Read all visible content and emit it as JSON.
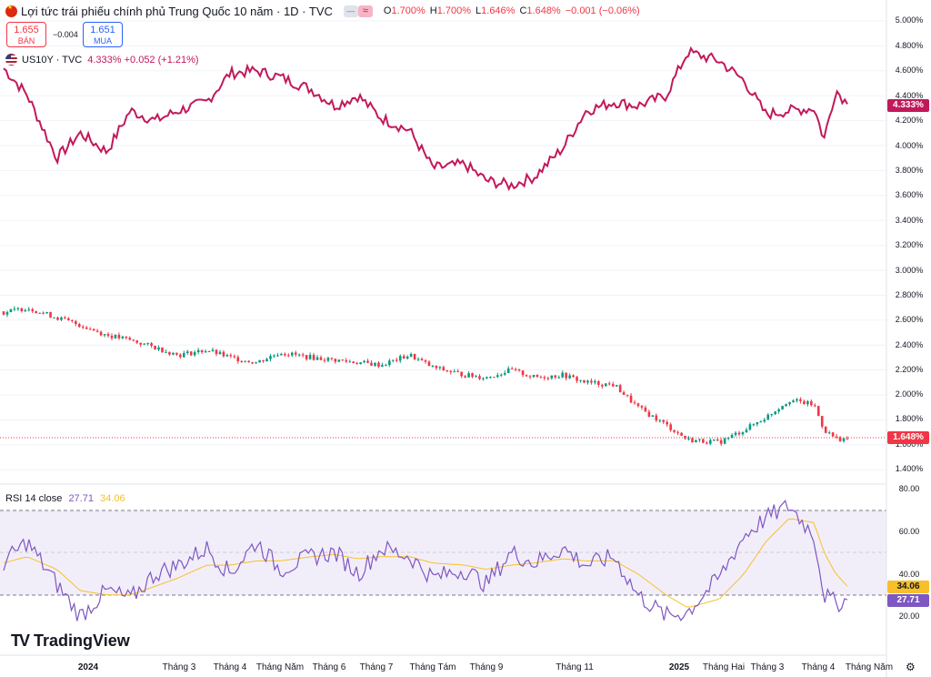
{
  "header": {
    "title": "Lợi tức trái phiếu chính phủ Trung Quốc 10 năm · 1D · TVC",
    "hide_icon": "minus-icon",
    "approx_icon": "≈",
    "ohlc": [
      {
        "label": "O",
        "value": "1.700%"
      },
      {
        "label": "H",
        "value": "1.700%"
      },
      {
        "label": "L",
        "value": "1.646%"
      },
      {
        "label": "C",
        "value": "1.648%"
      }
    ],
    "change": "−0.001 (−0.06%)"
  },
  "trade": {
    "sell_price": "1.655",
    "sell_label": "BÁN",
    "spread": "−0.004",
    "buy_price": "1.651",
    "buy_label": "MUA"
  },
  "compare": {
    "symbol": "US10Y · TVC",
    "value": "4.333% +0.052 (+1.21%)"
  },
  "rsi": {
    "label": "RSI 14 close",
    "rsi_value": "27.71",
    "ma_value": "34.06"
  },
  "price_axis": {
    "right_ticks": [
      "5.000%",
      "4.800%",
      "4.600%",
      "4.400%",
      "4.200%",
      "4.000%",
      "3.800%",
      "3.600%",
      "3.400%",
      "3.200%",
      "3.000%",
      "2.800%",
      "2.600%",
      "2.400%",
      "2.200%",
      "2.000%",
      "1.800%",
      "1.600%",
      "1.400%"
    ],
    "us_badge": "4.333%",
    "cn_badge": "1.648%"
  },
  "rsi_axis": {
    "ticks": [
      "80.00",
      "60.00",
      "40.00",
      "20.00"
    ],
    "ma_badge": "34.06",
    "rsi_badge": "27.71"
  },
  "time_axis": [
    "2024",
    "Tháng 3",
    "Tháng 4",
    "Tháng Năm",
    "Tháng 6",
    "Tháng 7",
    "Tháng Tám",
    "Tháng 9",
    "Tháng 11",
    "2025",
    "Tháng Hai",
    "Tháng 3",
    "Tháng 4",
    "Tháng Năm"
  ],
  "branding": {
    "logo_mark": "TV",
    "logo_text": "TradingView"
  },
  "colors": {
    "up": "#089981",
    "down": "#f23645",
    "us_line": "#c2185b",
    "rsi_line": "#7e57c2",
    "rsi_ma": "#f7c02a"
  },
  "chart_data": [
    {
      "type": "line",
      "name": "US10Y",
      "unit": "%",
      "x": [
        "2023-12-01",
        "2023-12-15",
        "2024-01-02",
        "2024-01-16",
        "2024-02-01",
        "2024-02-15",
        "2024-03-01",
        "2024-03-15",
        "2024-04-01",
        "2024-04-15",
        "2024-05-01",
        "2024-05-15",
        "2024-06-03",
        "2024-06-17",
        "2024-07-01",
        "2024-07-15",
        "2024-08-01",
        "2024-08-15",
        "2024-09-03",
        "2024-09-16",
        "2024-10-01",
        "2024-10-15",
        "2024-11-01",
        "2024-11-15",
        "2024-12-02",
        "2024-12-16",
        "2025-01-02",
        "2025-01-15",
        "2025-02-03",
        "2025-02-18",
        "2025-03-03",
        "2025-03-17",
        "2025-04-01",
        "2025-04-07",
        "2025-04-14",
        "2025-04-21"
      ],
      "y": [
        4.62,
        4.41,
        3.9,
        4.1,
        3.95,
        4.28,
        4.2,
        4.28,
        4.35,
        4.58,
        4.6,
        4.55,
        4.45,
        4.32,
        4.4,
        4.22,
        4.12,
        3.82,
        3.85,
        3.72,
        3.68,
        3.75,
        3.98,
        4.28,
        4.35,
        4.32,
        4.4,
        4.75,
        4.68,
        4.52,
        4.25,
        4.28,
        4.3,
        4.05,
        4.45,
        4.333
      ],
      "ylim": [
        3.4,
        5.0
      ]
    },
    {
      "type": "candlestick",
      "name": "Lợi tức trái phiếu chính phủ Trung Quốc 10 năm",
      "unit": "%",
      "x": [
        "2023-12-01",
        "2023-12-15",
        "2024-01-02",
        "2024-01-16",
        "2024-02-01",
        "2024-02-15",
        "2024-03-01",
        "2024-03-15",
        "2024-04-01",
        "2024-04-15",
        "2024-05-01",
        "2024-05-15",
        "2024-06-03",
        "2024-06-17",
        "2024-07-01",
        "2024-07-15",
        "2024-08-01",
        "2024-08-15",
        "2024-09-03",
        "2024-09-16",
        "2024-10-01",
        "2024-10-15",
        "2024-11-01",
        "2024-11-15",
        "2024-12-02",
        "2024-12-16",
        "2025-01-02",
        "2025-01-15",
        "2025-02-03",
        "2025-02-18",
        "2025-03-03",
        "2025-03-17",
        "2025-04-01",
        "2025-04-07",
        "2025-04-14",
        "2025-04-21"
      ],
      "close": [
        2.66,
        2.7,
        2.62,
        2.56,
        2.48,
        2.44,
        2.38,
        2.32,
        2.36,
        2.3,
        2.26,
        2.34,
        2.3,
        2.28,
        2.26,
        2.24,
        2.32,
        2.22,
        2.16,
        2.14,
        2.2,
        2.14,
        2.16,
        2.1,
        2.08,
        1.9,
        1.76,
        1.64,
        1.62,
        1.72,
        1.82,
        1.96,
        1.92,
        1.72,
        1.65,
        1.648
      ],
      "ylim": [
        1.4,
        2.8
      ]
    },
    {
      "type": "line",
      "name": "RSI 14 close",
      "x": [
        "2023-12-01",
        "2023-12-15",
        "2024-01-02",
        "2024-01-16",
        "2024-02-01",
        "2024-02-15",
        "2024-03-01",
        "2024-03-15",
        "2024-04-01",
        "2024-04-15",
        "2024-05-01",
        "2024-05-15",
        "2024-06-03",
        "2024-06-17",
        "2024-07-01",
        "2024-07-15",
        "2024-08-01",
        "2024-08-15",
        "2024-09-03",
        "2024-09-16",
        "2024-10-01",
        "2024-10-15",
        "2024-11-01",
        "2024-11-15",
        "2024-12-02",
        "2024-12-16",
        "2025-01-02",
        "2025-01-15",
        "2025-02-03",
        "2025-02-18",
        "2025-03-03",
        "2025-03-17",
        "2025-04-01",
        "2025-04-07",
        "2025-04-14",
        "2025-04-21"
      ],
      "y": [
        45,
        55,
        35,
        20,
        32,
        28,
        40,
        44,
        52,
        40,
        55,
        42,
        48,
        50,
        40,
        52,
        48,
        38,
        42,
        35,
        50,
        45,
        52,
        44,
        48,
        30,
        20,
        22,
        38,
        58,
        66,
        72,
        58,
        30,
        26,
        27.71
      ],
      "ma": [
        45,
        48,
        42,
        32,
        30,
        30,
        34,
        38,
        44,
        44,
        46,
        46,
        48,
        49,
        47,
        48,
        48,
        45,
        44,
        42,
        44,
        45,
        47,
        46,
        46,
        40,
        30,
        24,
        28,
        40,
        55,
        66,
        64,
        50,
        40,
        34.06
      ],
      "levels": [
        70,
        50,
        30
      ],
      "ylim": [
        10,
        80
      ]
    }
  ]
}
